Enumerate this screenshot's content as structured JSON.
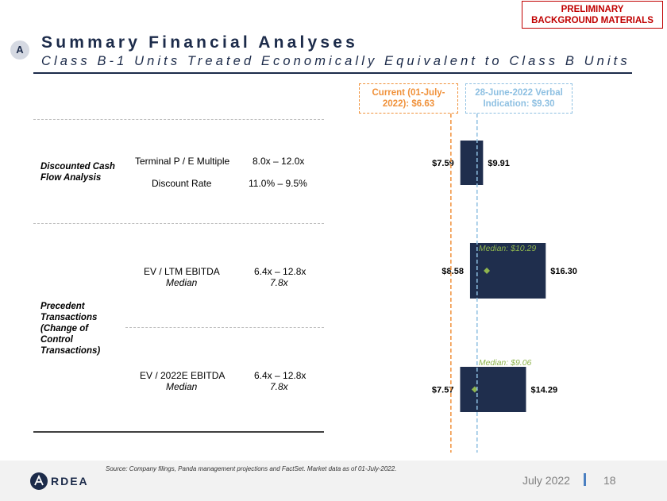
{
  "header": {
    "badge": "PRELIMINARY BACKGROUND MATERIALS",
    "badge_line1": "PRELIMINARY",
    "badge_line2": "BACKGROUND MATERIALS",
    "section_letter": "A",
    "title": "Summary Financial Analyses",
    "subtitle": "Class B-1 Units Treated Economically Equivalent to Class B Units"
  },
  "reference_lines": {
    "current": {
      "line1": "Current (01-July-",
      "line2": "2022): $6.63",
      "value": 6.63,
      "color": "#f0913a"
    },
    "verbal": {
      "line1": "28-June-2022 Verbal",
      "line2": "Indication: $9.30",
      "value": 9.3,
      "color": "#8ec0e2"
    }
  },
  "table": {
    "dcf": {
      "category_line1": "Discounted Cash",
      "category_line2": "Flow Analysis",
      "rows": [
        {
          "metric": "Terminal P / E Multiple",
          "range": "8.0x – 12.0x"
        },
        {
          "metric": "Discount Rate",
          "range": "11.0% – 9.5%"
        }
      ]
    },
    "precedent": {
      "category_lines": [
        "Precedent",
        "Transactions",
        "(Change of",
        "Control",
        "Transactions)"
      ],
      "rows": [
        {
          "metric": "EV / LTM EBITDA",
          "median_label": "Median",
          "range": "6.4x – 12.8x",
          "median": "7.8x"
        },
        {
          "metric": "EV / 2022E EBITDA",
          "median_label": "Median",
          "range": "6.4x – 12.8x",
          "median": "7.8x"
        }
      ]
    }
  },
  "chart_data": {
    "type": "bar",
    "orientation": "horizontal floating range",
    "categories": [
      "Discounted Cash Flow Analysis",
      "Precedent Transactions – EV / LTM EBITDA",
      "Precedent Transactions – EV / 2022E EBITDA"
    ],
    "ranges": [
      {
        "low": 7.59,
        "high": 9.91,
        "low_label": "$7.59",
        "high_label": "$9.91",
        "median": null,
        "median_label": ""
      },
      {
        "low": 8.58,
        "high": 16.3,
        "low_label": "$8.58",
        "high_label": "$16.30",
        "median": 10.29,
        "median_label": "Median: $10.29"
      },
      {
        "low": 7.57,
        "high": 14.29,
        "low_label": "$7.57",
        "high_label": "$14.29",
        "median": 9.06,
        "median_label": "Median: $9.06"
      }
    ],
    "reference_values": [
      6.63,
      9.3
    ],
    "bar_color": "#1f2e4d",
    "median_marker_color": "#8fb54e"
  },
  "footer": {
    "source": "Source: Company filings, Panda management projections and FactSet. Market data as of 01-July-2022.",
    "logo_text": "ARDEA",
    "date": "July 2022",
    "page": "18"
  }
}
